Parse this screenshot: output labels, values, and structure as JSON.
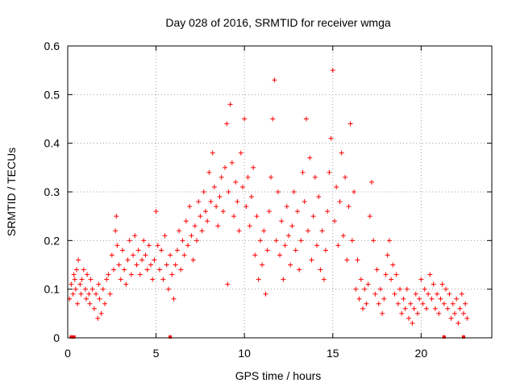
{
  "chart_data": {
    "type": "scatter",
    "title": "Day 028 of 2016, SRMTID for receiver wmga",
    "xlabel": "GPS time / hours",
    "ylabel": "SRMTID / TECUs",
    "xlim": [
      0,
      24
    ],
    "ylim": [
      0,
      0.6
    ],
    "xticks": [
      0,
      5,
      10,
      15,
      20
    ],
    "xtick_labels": [
      "0",
      "5",
      "10",
      "15",
      "20"
    ],
    "yticks": [
      0,
      0.1,
      0.2,
      0.3,
      0.4,
      0.5,
      0.6
    ],
    "ytick_labels": [
      "0",
      "0.1",
      "0.2",
      "0.3",
      "0.4",
      "0.5",
      "0.6"
    ],
    "grid": true,
    "marker": "+",
    "color": "#ff0000",
    "series": [
      {
        "name": "SRMTID",
        "points": [
          [
            0.1,
            0.08
          ],
          [
            0.2,
            0.11
          ],
          [
            0.3,
            0.09
          ],
          [
            0.35,
            0.13
          ],
          [
            0.4,
            0.12
          ],
          [
            0.45,
            0.1
          ],
          [
            0.5,
            0.14
          ],
          [
            0.55,
            0.07
          ],
          [
            0.6,
            0.16
          ],
          [
            0.7,
            0.11
          ],
          [
            0.75,
            0.09
          ],
          [
            0.8,
            0.12
          ],
          [
            0.9,
            0.14
          ],
          [
            1.0,
            0.1
          ],
          [
            1.05,
            0.08
          ],
          [
            1.1,
            0.13
          ],
          [
            1.2,
            0.09
          ],
          [
            1.25,
            0.07
          ],
          [
            1.3,
            0.12
          ],
          [
            1.4,
            0.1
          ],
          [
            1.5,
            0.06
          ],
          [
            1.6,
            0.09
          ],
          [
            1.7,
            0.04
          ],
          [
            1.75,
            0.11
          ],
          [
            1.8,
            0.08
          ],
          [
            1.9,
            0.05
          ],
          [
            2.0,
            0.1
          ],
          [
            2.1,
            0.07
          ],
          [
            2.2,
            0.12
          ],
          [
            2.3,
            0.13
          ],
          [
            2.4,
            0.09
          ],
          [
            2.5,
            0.17
          ],
          [
            2.6,
            0.14
          ],
          [
            2.7,
            0.22
          ],
          [
            2.75,
            0.25
          ],
          [
            2.8,
            0.19
          ],
          [
            2.9,
            0.15
          ],
          [
            3.0,
            0.12
          ],
          [
            3.1,
            0.18
          ],
          [
            3.2,
            0.14
          ],
          [
            3.3,
            0.11
          ],
          [
            3.4,
            0.16
          ],
          [
            3.5,
            0.2
          ],
          [
            3.6,
            0.13
          ],
          [
            3.7,
            0.17
          ],
          [
            3.8,
            0.21
          ],
          [
            3.9,
            0.15
          ],
          [
            4.0,
            0.18
          ],
          [
            4.1,
            0.13
          ],
          [
            4.2,
            0.16
          ],
          [
            4.3,
            0.2
          ],
          [
            4.4,
            0.17
          ],
          [
            4.5,
            0.14
          ],
          [
            4.6,
            0.19
          ],
          [
            4.7,
            0.15
          ],
          [
            4.8,
            0.12
          ],
          [
            4.9,
            0.16
          ],
          [
            5.0,
            0.26
          ],
          [
            5.1,
            0.19
          ],
          [
            5.2,
            0.14
          ],
          [
            5.3,
            0.18
          ],
          [
            5.4,
            0.12
          ],
          [
            5.5,
            0.21
          ],
          [
            5.6,
            0.15
          ],
          [
            5.7,
            0.1
          ],
          [
            5.8,
            0.17
          ],
          [
            5.9,
            0.13
          ],
          [
            6.0,
            0.08
          ],
          [
            6.1,
            0.15
          ],
          [
            6.2,
            0.18
          ],
          [
            6.3,
            0.22
          ],
          [
            6.4,
            0.14
          ],
          [
            6.5,
            0.2
          ],
          [
            6.6,
            0.17
          ],
          [
            6.7,
            0.24
          ],
          [
            6.8,
            0.19
          ],
          [
            6.9,
            0.27
          ],
          [
            7.0,
            0.21
          ],
          [
            7.1,
            0.16
          ],
          [
            7.2,
            0.23
          ],
          [
            7.3,
            0.2
          ],
          [
            7.4,
            0.28
          ],
          [
            7.5,
            0.25
          ],
          [
            7.6,
            0.22
          ],
          [
            7.7,
            0.3
          ],
          [
            7.8,
            0.26
          ],
          [
            7.9,
            0.24
          ],
          [
            8.0,
            0.34
          ],
          [
            8.1,
            0.28
          ],
          [
            8.2,
            0.38
          ],
          [
            8.3,
            0.31
          ],
          [
            8.4,
            0.27
          ],
          [
            8.5,
            0.23
          ],
          [
            8.6,
            0.29
          ],
          [
            8.7,
            0.33
          ],
          [
            8.8,
            0.26
          ],
          [
            8.9,
            0.35
          ],
          [
            9.0,
            0.44
          ],
          [
            9.05,
            0.11
          ],
          [
            9.1,
            0.3
          ],
          [
            9.2,
            0.48
          ],
          [
            9.3,
            0.36
          ],
          [
            9.4,
            0.25
          ],
          [
            9.5,
            0.32
          ],
          [
            9.6,
            0.28
          ],
          [
            9.7,
            0.22
          ],
          [
            9.8,
            0.38
          ],
          [
            9.9,
            0.31
          ],
          [
            10.0,
            0.45
          ],
          [
            10.1,
            0.27
          ],
          [
            10.2,
            0.33
          ],
          [
            10.3,
            0.23
          ],
          [
            10.4,
            0.29
          ],
          [
            10.5,
            0.35
          ],
          [
            10.6,
            0.17
          ],
          [
            10.7,
            0.25
          ],
          [
            10.8,
            0.12
          ],
          [
            10.9,
            0.2
          ],
          [
            11.0,
            0.15
          ],
          [
            11.1,
            0.22
          ],
          [
            11.2,
            0.09
          ],
          [
            11.3,
            0.18
          ],
          [
            11.4,
            0.26
          ],
          [
            11.5,
            0.33
          ],
          [
            11.6,
            0.45
          ],
          [
            11.7,
            0.53
          ],
          [
            11.8,
            0.2
          ],
          [
            11.9,
            0.3
          ],
          [
            12.0,
            0.17
          ],
          [
            12.1,
            0.24
          ],
          [
            12.2,
            0.12
          ],
          [
            12.3,
            0.19
          ],
          [
            12.4,
            0.27
          ],
          [
            12.5,
            0.21
          ],
          [
            12.6,
            0.15
          ],
          [
            12.7,
            0.23
          ],
          [
            12.8,
            0.3
          ],
          [
            12.9,
            0.18
          ],
          [
            13.0,
            0.26
          ],
          [
            13.1,
            0.14
          ],
          [
            13.2,
            0.2
          ],
          [
            13.3,
            0.34
          ],
          [
            13.4,
            0.28
          ],
          [
            13.5,
            0.45
          ],
          [
            13.6,
            0.22
          ],
          [
            13.7,
            0.37
          ],
          [
            13.8,
            0.16
          ],
          [
            13.9,
            0.25
          ],
          [
            14.0,
            0.33
          ],
          [
            14.1,
            0.19
          ],
          [
            14.2,
            0.29
          ],
          [
            14.3,
            0.14
          ],
          [
            14.4,
            0.22
          ],
          [
            14.5,
            0.12
          ],
          [
            14.6,
            0.18
          ],
          [
            14.7,
            0.26
          ],
          [
            14.8,
            0.34
          ],
          [
            14.9,
            0.41
          ],
          [
            15.0,
            0.55
          ],
          [
            15.1,
            0.24
          ],
          [
            15.2,
            0.31
          ],
          [
            15.3,
            0.19
          ],
          [
            15.4,
            0.28
          ],
          [
            15.5,
            0.38
          ],
          [
            15.6,
            0.21
          ],
          [
            15.7,
            0.33
          ],
          [
            15.8,
            0.16
          ],
          [
            15.9,
            0.27
          ],
          [
            16.0,
            0.44
          ],
          [
            16.1,
            0.2
          ],
          [
            16.2,
            0.3
          ],
          [
            16.3,
            0.1
          ],
          [
            16.4,
            0.16
          ],
          [
            16.5,
            0.08
          ],
          [
            16.6,
            0.12
          ],
          [
            16.7,
            0.06
          ],
          [
            16.8,
            0.1
          ],
          [
            16.9,
            0.07
          ],
          [
            17.0,
            0.11
          ],
          [
            17.1,
            0.25
          ],
          [
            17.2,
            0.32
          ],
          [
            17.3,
            0.2
          ],
          [
            17.4,
            0.09
          ],
          [
            17.5,
            0.14
          ],
          [
            17.6,
            0.07
          ],
          [
            17.7,
            0.1
          ],
          [
            17.8,
            0.05
          ],
          [
            17.9,
            0.08
          ],
          [
            18.0,
            0.13
          ],
          [
            18.1,
            0.17
          ],
          [
            18.2,
            0.2
          ],
          [
            18.3,
            0.12
          ],
          [
            18.4,
            0.15
          ],
          [
            18.5,
            0.09
          ],
          [
            18.6,
            0.13
          ],
          [
            18.7,
            0.07
          ],
          [
            18.8,
            0.1
          ],
          [
            18.9,
            0.05
          ],
          [
            19.0,
            0.08
          ],
          [
            19.1,
            0.06
          ],
          [
            19.2,
            0.1
          ],
          [
            19.3,
            0.04
          ],
          [
            19.4,
            0.07
          ],
          [
            19.5,
            0.03
          ],
          [
            19.6,
            0.06
          ],
          [
            19.7,
            0.09
          ],
          [
            19.8,
            0.05
          ],
          [
            19.9,
            0.08
          ],
          [
            20.0,
            0.12
          ],
          [
            20.1,
            0.07
          ],
          [
            20.2,
            0.1
          ],
          [
            20.3,
            0.06
          ],
          [
            20.4,
            0.09
          ],
          [
            20.5,
            0.13
          ],
          [
            20.6,
            0.08
          ],
          [
            20.7,
            0.11
          ],
          [
            20.8,
            0.06
          ],
          [
            20.9,
            0.09
          ],
          [
            21.0,
            0.05
          ],
          [
            21.1,
            0.08
          ],
          [
            21.2,
            0.11
          ],
          [
            21.3,
            0.07
          ],
          [
            21.4,
            0.1
          ],
          [
            21.5,
            0.06
          ],
          [
            21.6,
            0.09
          ],
          [
            21.7,
            0.04
          ],
          [
            21.8,
            0.07
          ],
          [
            21.9,
            0.05
          ],
          [
            22.0,
            0.08
          ],
          [
            22.1,
            0.03
          ],
          [
            22.2,
            0.06
          ],
          [
            22.3,
            0.09
          ],
          [
            22.4,
            0.05
          ],
          [
            22.5,
            0.07
          ],
          [
            22.6,
            0.04
          ]
        ]
      }
    ],
    "gap_markers_x": [
      0.2,
      0.35,
      5.8,
      21.3,
      22.4
    ]
  }
}
